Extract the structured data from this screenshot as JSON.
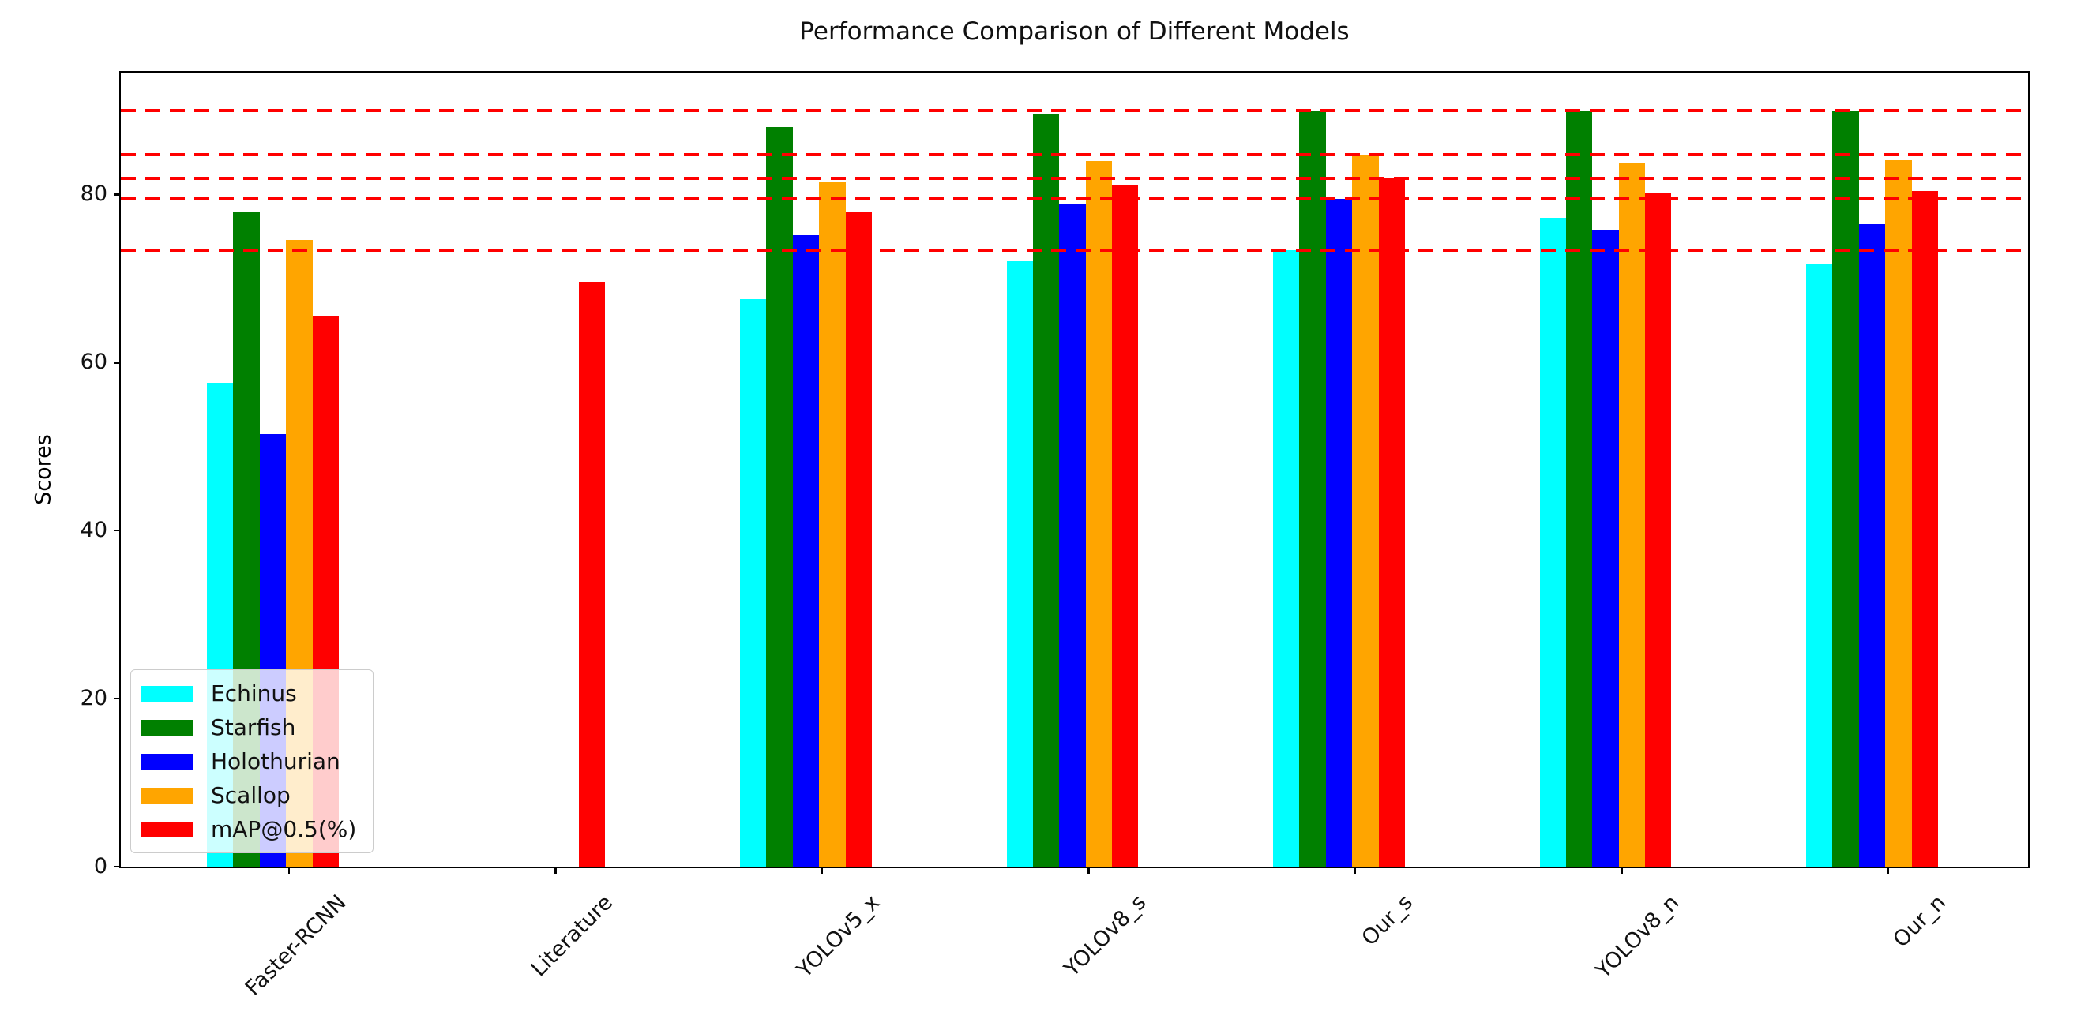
{
  "figure": {
    "title": "Performance Comparison of Different Models",
    "ylabel": "Scores"
  },
  "chart_data": {
    "type": "bar",
    "title": "Performance Comparison of Different Models",
    "xlabel": "",
    "ylabel": "Scores",
    "categories": [
      "Faster-RCNN",
      "Literature",
      "YOLOv5_x",
      "YOLOv8_s",
      "Our_s",
      "YOLOv8_n",
      "Our_n"
    ],
    "series": [
      {
        "name": "Echinus",
        "color": "#00ffff",
        "values": [
          57.6,
          0,
          67.5,
          72.1,
          73.4,
          77.2,
          71.7
        ]
      },
      {
        "name": "Starfish",
        "color": "#008000",
        "values": [
          78.0,
          0,
          88.0,
          89.6,
          90.0,
          90.0,
          89.9
        ]
      },
      {
        "name": "Holothurian",
        "color": "#0000ff",
        "values": [
          51.5,
          0,
          75.2,
          78.9,
          79.5,
          75.8,
          76.5
        ]
      },
      {
        "name": "Scallop",
        "color": "#ffa500",
        "values": [
          74.6,
          0,
          81.5,
          84.0,
          84.7,
          83.7,
          84.1
        ]
      },
      {
        "name": "mAP@0.5(%)",
        "color": "#ff0000",
        "values": [
          65.6,
          69.6,
          78.0,
          81.1,
          81.9,
          80.1,
          80.4
        ]
      }
    ],
    "reference_lines": {
      "values": [
        73.4,
        79.5,
        81.9,
        84.7,
        90.0
      ],
      "color": "#ff0000",
      "style": "dashed"
    },
    "yticks": [
      0,
      20,
      40,
      60,
      80
    ],
    "ylim": [
      0,
      94.5
    ],
    "grid": false,
    "legend_position": "lower left",
    "xtick_rotation": 45,
    "bar_colors_note": "cyan, green, blue, orange, red"
  }
}
